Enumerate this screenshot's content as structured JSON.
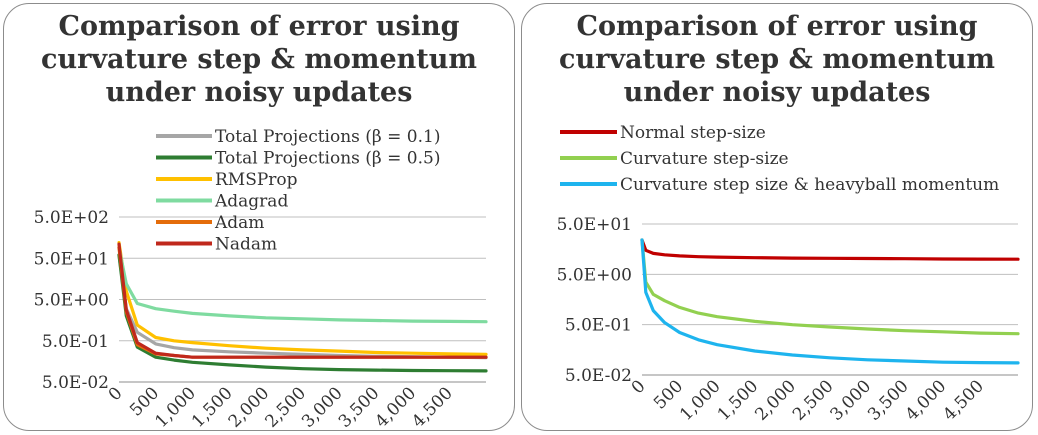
{
  "chart_data": [
    {
      "type": "line",
      "title": "Comparison of error using curvature step & momentum under noisy updates",
      "xlabel": "",
      "ylabel": "",
      "y_scale": "log",
      "xlim": [
        0,
        5000
      ],
      "ylim": [
        0.05,
        500
      ],
      "x_tick_labels": [
        "0",
        "500",
        "1,000",
        "1,500",
        "2,000",
        "2,500",
        "3,000",
        "3,500",
        "4,000",
        "4,500"
      ],
      "y_tick_labels": [
        "5.0E+02",
        "5.0E+01",
        "5.0E+00",
        "5.0E-01",
        "5.0E-02"
      ],
      "grid": "horizontal",
      "legend": "top-right",
      "x": [
        0,
        100,
        250,
        500,
        750,
        1000,
        1500,
        2000,
        2500,
        3000,
        3500,
        4000,
        4500,
        5000
      ],
      "series": [
        {
          "name": "Total Projections (β = 0.1)",
          "color": "#a6a6a6",
          "values": [
            60,
            3.0,
            0.8,
            0.42,
            0.34,
            0.3,
            0.27,
            0.25,
            0.235,
            0.22,
            0.21,
            0.205,
            0.2,
            0.195
          ]
        },
        {
          "name": "Total Projections (β = 0.5)",
          "color": "#2e7d32",
          "values": [
            60,
            2.0,
            0.35,
            0.2,
            0.17,
            0.15,
            0.13,
            0.115,
            0.105,
            0.1,
            0.097,
            0.095,
            0.094,
            0.093
          ]
        },
        {
          "name": "RMSProp",
          "color": "#ffc000",
          "values": [
            120,
            8.0,
            1.2,
            0.6,
            0.5,
            0.45,
            0.38,
            0.33,
            0.3,
            0.28,
            0.26,
            0.25,
            0.24,
            0.235
          ]
        },
        {
          "name": "Adagrad",
          "color": "#7fdba0",
          "values": [
            90,
            12.0,
            4.0,
            3.0,
            2.6,
            2.3,
            2.0,
            1.8,
            1.7,
            1.6,
            1.55,
            1.5,
            1.47,
            1.45
          ]
        },
        {
          "name": "Adam",
          "color": "#e46c0a",
          "values": [
            90,
            2.5,
            0.4,
            0.24,
            0.22,
            0.2,
            0.2,
            0.2,
            0.2,
            0.2,
            0.2,
            0.2,
            0.2,
            0.2
          ]
        },
        {
          "name": "Nadam",
          "color": "#c0281c",
          "values": [
            110,
            2.8,
            0.45,
            0.25,
            0.22,
            0.2,
            0.2,
            0.2,
            0.2,
            0.2,
            0.2,
            0.2,
            0.2,
            0.2
          ]
        }
      ]
    },
    {
      "type": "line",
      "title": "Comparison of error using curvature step & momentum under noisy updates",
      "xlabel": "",
      "ylabel": "",
      "y_scale": "log",
      "xlim": [
        0,
        5000
      ],
      "ylim": [
        0.05,
        50
      ],
      "x_tick_labels": [
        "0",
        "500",
        "1,000",
        "1,500",
        "2,000",
        "2,500",
        "3,000",
        "3,500",
        "4,000",
        "4,500"
      ],
      "y_tick_labels": [
        "5.0E+01",
        "5.0E+00",
        "5.0E-01",
        "5.0E-02"
      ],
      "grid": "horizontal",
      "legend": "top",
      "x": [
        0,
        50,
        150,
        300,
        500,
        750,
        1000,
        1500,
        2000,
        2500,
        3000,
        3500,
        4000,
        4500,
        5000
      ],
      "series": [
        {
          "name": "Normal step-size",
          "color": "#c00000",
          "values": [
            24,
            15.0,
            13.0,
            12.2,
            11.6,
            11.2,
            11.0,
            10.7,
            10.5,
            10.4,
            10.3,
            10.2,
            10.1,
            10.05,
            10.0
          ]
        },
        {
          "name": "Curvature step-size",
          "color": "#92d050",
          "values": [
            24,
            3.5,
            2.0,
            1.5,
            1.1,
            0.85,
            0.72,
            0.58,
            0.5,
            0.45,
            0.41,
            0.38,
            0.36,
            0.34,
            0.33
          ]
        },
        {
          "name": "Curvature step size & heavyball momentum",
          "color": "#1eb4ee",
          "values": [
            24,
            2.2,
            0.95,
            0.55,
            0.35,
            0.25,
            0.2,
            0.15,
            0.125,
            0.11,
            0.1,
            0.095,
            0.09,
            0.088,
            0.087
          ]
        }
      ]
    }
  ]
}
